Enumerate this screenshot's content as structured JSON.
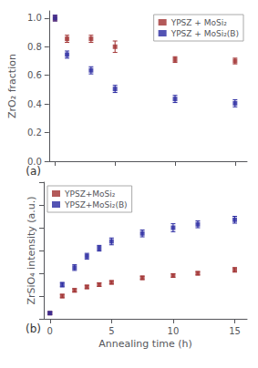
{
  "chart_data": [
    {
      "type": "scatter",
      "ylabel": "ZrO₂ fraction",
      "xlim": [
        -0.5,
        16
      ],
      "xticks": [
        0,
        5,
        10,
        15
      ],
      "ylim": [
        0.0,
        1.05
      ],
      "yticks": [
        {
          "value": 0.0,
          "label": "0.0"
        },
        0.2,
        0.4,
        0.6,
        0.8,
        {
          "value": 1.0,
          "label": "1.0"
        }
      ],
      "tick_labels": "y",
      "grid": false,
      "legend": "upper right",
      "annotations": [
        "(a)"
      ],
      "series": [
        {
          "name": "YPSZ + MoSi₂",
          "color": "#a03030",
          "marker": "square",
          "x": [
            0,
            1,
            3,
            5,
            10,
            15
          ],
          "values": [
            1.0,
            0.855,
            0.855,
            0.8,
            0.71,
            0.7
          ],
          "yerr": [
            0.02,
            0.025,
            0.025,
            0.04,
            0.02,
            0.02
          ]
        },
        {
          "name": "YPSZ + MoSi₂(B)",
          "color": "#2828a0",
          "marker": "square",
          "x": [
            0,
            1,
            3,
            5,
            10,
            15
          ],
          "values": [
            1.0,
            0.745,
            0.635,
            0.505,
            0.435,
            0.405
          ],
          "yerr": [
            0.02,
            0.025,
            0.025,
            0.025,
            0.025,
            0.025
          ]
        }
      ]
    },
    {
      "type": "scatter",
      "ylabel": "ZrSiO₄ intensity (a.u.)",
      "xlabel": "Annealing time (h)",
      "xlim": [
        -0.5,
        16
      ],
      "xticks": [
        0,
        5,
        10,
        15
      ],
      "ylim": [
        0.0,
        1.2
      ],
      "yticks": [
        0.0,
        0.2,
        0.4,
        0.6,
        0.8,
        1.0,
        1.2
      ],
      "tick_labels": "x",
      "grid": false,
      "legend": "upper left",
      "annotations": [
        "(b)"
      ],
      "series": [
        {
          "name": "YPSZ+MoSi₂",
          "color": "#a03030",
          "marker": "square",
          "x": [
            0,
            1,
            2,
            3,
            4,
            5,
            7.5,
            10,
            12,
            15
          ],
          "values": [
            0.05,
            0.2,
            0.25,
            0.28,
            0.3,
            0.32,
            0.36,
            0.38,
            0.4,
            0.43
          ],
          "yerr": [
            0.01,
            0.015,
            0.015,
            0.015,
            0.015,
            0.015,
            0.015,
            0.015,
            0.015,
            0.02
          ]
        },
        {
          "name": "YPSZ+MoSi₂(B)",
          "color": "#2828a0",
          "marker": "square",
          "x": [
            0,
            1,
            2,
            3,
            4,
            5,
            7.5,
            10,
            12,
            15
          ],
          "values": [
            0.05,
            0.3,
            0.45,
            0.55,
            0.62,
            0.68,
            0.75,
            0.8,
            0.83,
            0.87
          ],
          "yerr": [
            0.01,
            0.02,
            0.025,
            0.025,
            0.025,
            0.03,
            0.03,
            0.035,
            0.03,
            0.03
          ]
        }
      ]
    }
  ]
}
